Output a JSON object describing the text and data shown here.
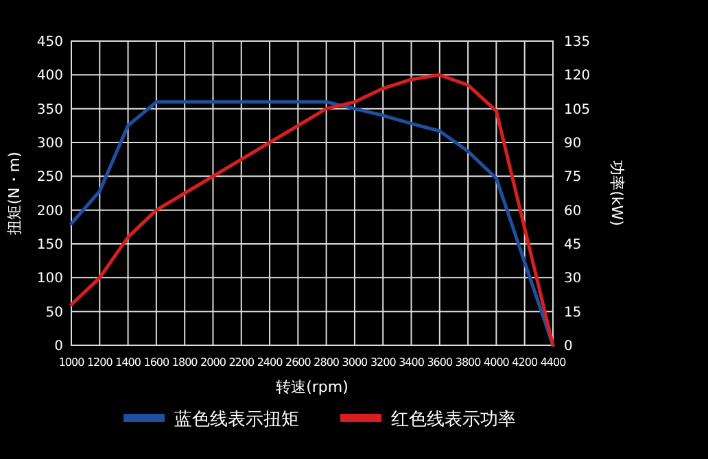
{
  "chart_data": {
    "type": "line",
    "xlabel": "转速(rpm)",
    "ylabel": "扭矩(N・m)",
    "y2label": "功率(kW)",
    "x": [
      1000,
      1200,
      1400,
      1600,
      1800,
      2000,
      2200,
      2400,
      2600,
      2800,
      3000,
      3200,
      3400,
      3600,
      3800,
      4000,
      4200,
      4400
    ],
    "series": [
      {
        "name": "蓝色线表示扭矩",
        "color": "#1f4fa0",
        "values": [
          180,
          228,
          325,
          360,
          360,
          360,
          360,
          360,
          360,
          360,
          350,
          340,
          328,
          317,
          287,
          247,
          123,
          0
        ]
      },
      {
        "name": "红色线表示功率",
        "color": "#d81e1e",
        "axis": "y2",
        "values": [
          18,
          30,
          48,
          60,
          67.5,
          75,
          82.5,
          90,
          97.5,
          105,
          108,
          114,
          118,
          120,
          115.5,
          104,
          52,
          0
        ]
      }
    ],
    "xlim": [
      1000,
      4400
    ],
    "xticks": [
      1000,
      1200,
      1400,
      1600,
      1800,
      2000,
      2200,
      2400,
      2600,
      2800,
      3000,
      3200,
      3400,
      3600,
      3800,
      4000,
      4200,
      4400
    ],
    "ylim": [
      0,
      450
    ],
    "yticks": [
      0,
      50,
      100,
      150,
      200,
      250,
      300,
      350,
      400,
      450
    ],
    "y2lim": [
      0,
      135
    ],
    "y2ticks": [
      0,
      15,
      30,
      45,
      60,
      75,
      90,
      105,
      120,
      135
    ],
    "grid": true,
    "legend": "bottom",
    "marker": "none",
    "line_style": "solid"
  }
}
